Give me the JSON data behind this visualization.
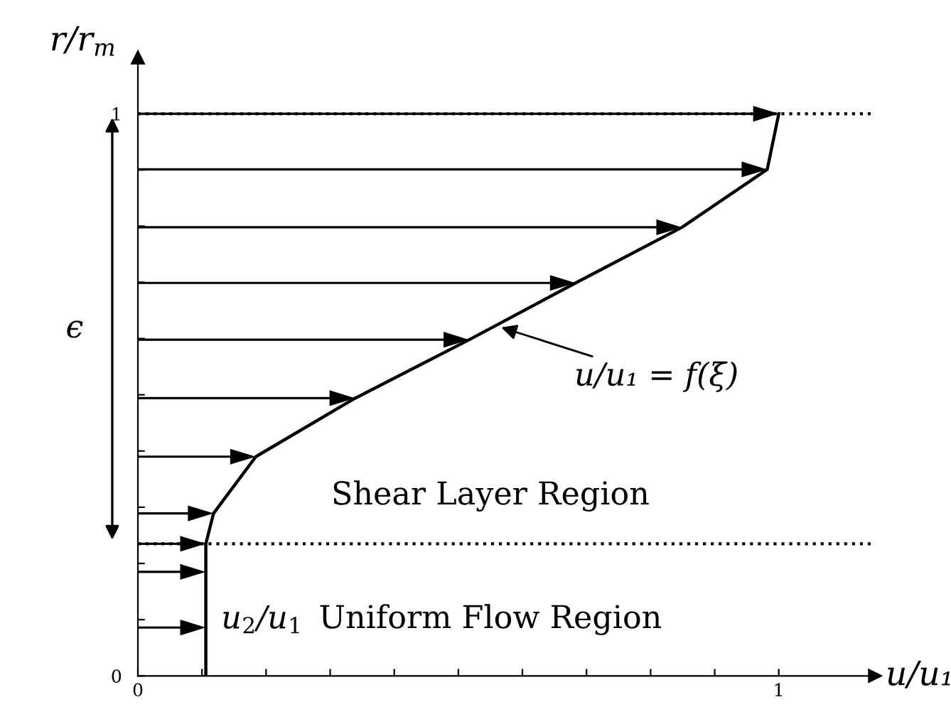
{
  "chart_data": {
    "type": "line",
    "xlabel": "u/u₁",
    "ylabel": "r/r$_{m}$",
    "series": [
      {
        "color": "#000000",
        "x": [
          0.106,
          0.106,
          0.106,
          0.106,
          0.118,
          0.184,
          0.339,
          0.517,
          0.683,
          0.849,
          0.982,
          1.0
        ],
        "values": [
          0,
          0.086,
          0.185,
          0.235,
          0.289,
          0.39,
          0.494,
          0.598,
          0.699,
          0.798,
          0.901,
          1.0
        ]
      }
    ],
    "xlim": [
      0,
      1.15
    ],
    "ylim": [
      0,
      1.1
    ],
    "xticks": [
      0,
      {
        "value": 0.1,
        "label": null
      },
      {
        "value": 0.2,
        "label": null
      },
      {
        "value": 0.3,
        "label": null
      },
      {
        "value": 0.4,
        "label": null
      },
      {
        "value": 0.5,
        "label": null
      },
      {
        "value": 0.6,
        "label": null
      },
      {
        "value": 0.7,
        "label": null
      },
      {
        "value": 0.8,
        "label": null
      },
      {
        "value": 0.9,
        "label": null
      },
      1
    ],
    "yticks": [
      0,
      {
        "value": 0.1,
        "label": null
      },
      {
        "value": 0.2,
        "label": null
      },
      {
        "value": 0.3,
        "label": null
      },
      {
        "value": 0.4,
        "label": null
      },
      {
        "value": 0.5,
        "label": null
      },
      {
        "value": 0.6,
        "label": null
      },
      {
        "value": 0.7,
        "label": null
      },
      {
        "value": 0.8,
        "label": null
      },
      {
        "value": 0.9,
        "label": null
      },
      1
    ],
    "ref_lines": [
      {
        "axis": "y",
        "value": 0.235,
        "line_style": "dotted",
        "color": "#000000"
      },
      {
        "axis": "y",
        "value": 1,
        "line_style": "dotted",
        "color": "#000000"
      }
    ],
    "annotations": [
      {
        "text": "u/u₁ = f(ξ)",
        "x": 0.561,
        "y": 0.622
      },
      "ϵ",
      "Shear Layer Region",
      "Uniform Flow Region",
      "u$_{2}$/u$_{1}$"
    ],
    "grid": false,
    "marker": "none",
    "line_style": "solid"
  }
}
